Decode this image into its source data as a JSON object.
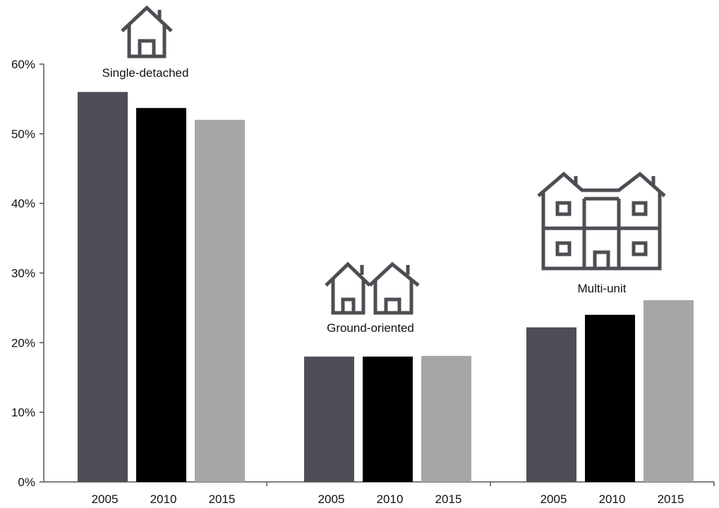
{
  "chart_data": {
    "type": "bar",
    "title": "",
    "xlabel": "",
    "ylabel": "",
    "ylim": [
      0,
      60
    ],
    "yticks": [
      "0%",
      "10%",
      "20%",
      "30%",
      "40%",
      "50%",
      "60%"
    ],
    "groups": [
      {
        "label": "Single-detached",
        "icon": "single-house-icon",
        "years": [
          "2005",
          "2010",
          "2015"
        ],
        "values": [
          56,
          53.7,
          52
        ]
      },
      {
        "label": "Ground-oriented",
        "icon": "two-houses-icon",
        "years": [
          "2005",
          "2010",
          "2015"
        ],
        "values": [
          18,
          18,
          18.1
        ]
      },
      {
        "label": "Multi-unit",
        "icon": "apartment-building-icon",
        "years": [
          "2005",
          "2010",
          "2015"
        ],
        "values": [
          22.2,
          24,
          26.1
        ]
      }
    ],
    "series_colors": [
      "#4d4e56",
      "#000000",
      "#a6a6a8"
    ],
    "grid": false,
    "legend": "none"
  }
}
